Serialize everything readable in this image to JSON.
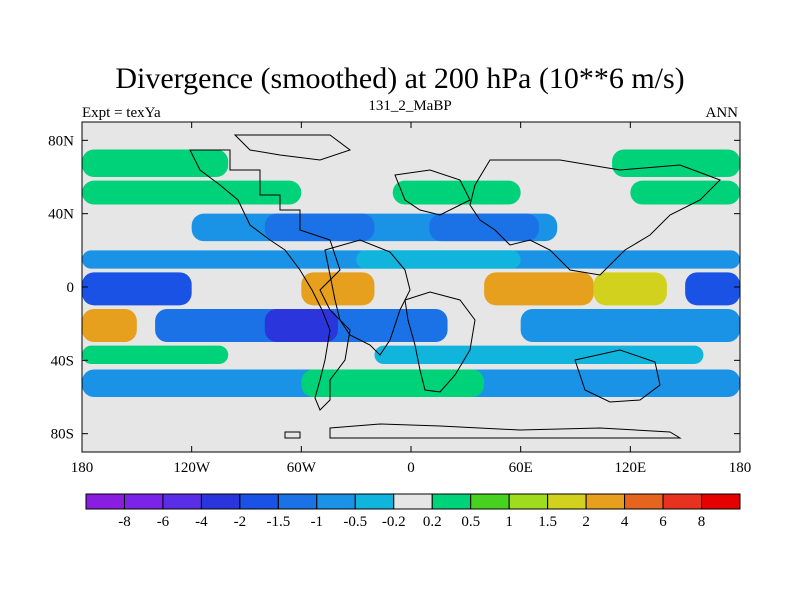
{
  "chart_data": {
    "type": "heatmap",
    "title": "Divergence (smoothed) at 200 hPa (10**6 m/s)",
    "left_label": "Expt = texYa",
    "center_label": "131_2_MaBP",
    "right_label": "ANN",
    "x_ticks": [
      "180",
      "120W",
      "60W",
      "0",
      "60E",
      "120E",
      "180"
    ],
    "x_tick_values": [
      -180,
      -120,
      -60,
      0,
      60,
      120,
      180
    ],
    "y_ticks": [
      "80N",
      "40N",
      "0",
      "40S",
      "80S"
    ],
    "y_tick_values": [
      80,
      40,
      0,
      -40,
      -80
    ],
    "xlim": [
      -180,
      180
    ],
    "ylim": [
      -90,
      90
    ],
    "colorbar": {
      "levels": [
        "-8",
        "-6",
        "-4",
        "-2",
        "-1.5",
        "-1",
        "-0.5",
        "-0.2",
        "0.2",
        "0.5",
        "1",
        "1.5",
        "2",
        "4",
        "6",
        "8"
      ],
      "colors": [
        "#8a1ee0",
        "#7b24e8",
        "#5a2ee6",
        "#2a36dc",
        "#1a52e6",
        "#1a72e6",
        "#1a92e6",
        "#10b4dc",
        "#e6e6e6",
        "#00d27a",
        "#46d21e",
        "#a0dc1e",
        "#d2d21e",
        "#e6a01e",
        "#e6641e",
        "#e6321e",
        "#e60000"
      ]
    },
    "bands": [
      {
        "lat": [
          60,
          75
        ],
        "segments": [
          {
            "lon": [
              -180,
              -100
            ],
            "color": "#00d27a"
          },
          {
            "lon": [
              110,
              180
            ],
            "color": "#00d27a"
          }
        ]
      },
      {
        "lat": [
          45,
          58
        ],
        "segments": [
          {
            "lon": [
              -180,
              -60
            ],
            "color": "#00d27a"
          },
          {
            "lon": [
              120,
              180
            ],
            "color": "#00d27a"
          },
          {
            "lon": [
              -10,
              60
            ],
            "color": "#00d27a"
          }
        ]
      },
      {
        "lat": [
          25,
          40
        ],
        "segments": [
          {
            "lon": [
              -120,
              80
            ],
            "color": "#1a92e6"
          },
          {
            "lon": [
              -80,
              -20
            ],
            "color": "#1a72e6"
          },
          {
            "lon": [
              10,
              70
            ],
            "color": "#1a72e6"
          }
        ]
      },
      {
        "lat": [
          10,
          20
        ],
        "segments": [
          {
            "lon": [
              -180,
              180
            ],
            "color": "#1a92e6"
          },
          {
            "lon": [
              -30,
              60
            ],
            "color": "#10b4dc"
          }
        ]
      },
      {
        "lat": [
          -10,
          8
        ],
        "segments": [
          {
            "lon": [
              -180,
              -120
            ],
            "color": "#1a52e6"
          },
          {
            "lon": [
              -60,
              -20
            ],
            "color": "#e6a01e"
          },
          {
            "lon": [
              40,
              100
            ],
            "color": "#e6a01e"
          },
          {
            "lon": [
              100,
              140
            ],
            "color": "#d2d21e"
          },
          {
            "lon": [
              150,
              180
            ],
            "color": "#1a52e6"
          }
        ]
      },
      {
        "lat": [
          -30,
          -12
        ],
        "segments": [
          {
            "lon": [
              -140,
              20
            ],
            "color": "#1a72e6"
          },
          {
            "lon": [
              -80,
              -40
            ],
            "color": "#2a36dc"
          },
          {
            "lon": [
              -180,
              -150
            ],
            "color": "#e6a01e"
          },
          {
            "lon": [
              60,
              180
            ],
            "color": "#1a92e6"
          }
        ]
      },
      {
        "lat": [
          -42,
          -32
        ],
        "segments": [
          {
            "lon": [
              -180,
              -100
            ],
            "color": "#00d27a"
          },
          {
            "lon": [
              -20,
              160
            ],
            "color": "#10b4dc"
          }
        ]
      },
      {
        "lat": [
          -60,
          -45
        ],
        "segments": [
          {
            "lon": [
              -180,
              180
            ],
            "color": "#1a92e6"
          },
          {
            "lon": [
              -60,
              40
            ],
            "color": "#00d27a"
          }
        ]
      }
    ]
  }
}
